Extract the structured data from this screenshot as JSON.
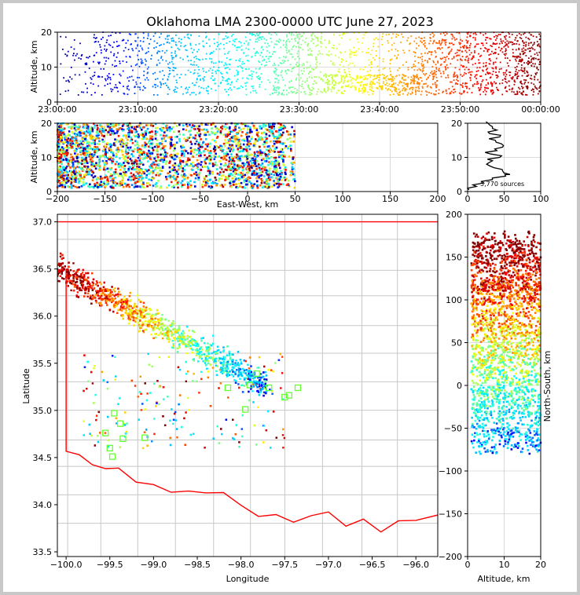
{
  "figure_title": "Oklahoma LMA 2300-0000 UTC June 27, 2023",
  "chart_data": [
    {
      "type": "scatter",
      "name": "time-height",
      "ylabel": "Altitude, km",
      "xlim_labels": [
        "23:00:00",
        "00:00:00"
      ],
      "x_ticks": [
        "23:00:00",
        "23:10:00",
        "23:20:00",
        "23:30:00",
        "23:40:00",
        "23:50:00",
        "00:00:00"
      ],
      "ylim": [
        0,
        20
      ],
      "y_ticks": [
        0,
        10,
        20
      ],
      "color_by": "time",
      "colormap": [
        "#00008f",
        "#0000ff",
        "#00bfff",
        "#00ffff",
        "#80ff80",
        "#ffff00",
        "#ff8000",
        "#ff0000",
        "#800000"
      ],
      "grid": true
    },
    {
      "type": "scatter",
      "name": "east-west-altitude",
      "xlabel": "East-West, km",
      "ylabel": "Altitude, km",
      "xlim": [
        -200,
        200
      ],
      "x_ticks": [
        -200,
        -150,
        -100,
        -50,
        0,
        50,
        100,
        150,
        200
      ],
      "ylim": [
        0,
        20
      ],
      "y_ticks": [
        0,
        10,
        20
      ],
      "grid": true
    },
    {
      "type": "line",
      "name": "altitude-histogram",
      "xlim": [
        0,
        100
      ],
      "x_ticks": [
        0,
        50,
        100
      ],
      "ylim": [
        0,
        20
      ],
      "y_ticks": [
        0,
        10,
        20
      ],
      "annotation": "5,770 sources",
      "profile": [
        {
          "alt": 0.5,
          "count": 2
        },
        {
          "alt": 1.5,
          "count": 12
        },
        {
          "alt": 2.5,
          "count": 22
        },
        {
          "alt": 3.5,
          "count": 34
        },
        {
          "alt": 4.5,
          "count": 52
        },
        {
          "alt": 5.0,
          "count": 58
        },
        {
          "alt": 6.0,
          "count": 48
        },
        {
          "alt": 7.0,
          "count": 36
        },
        {
          "alt": 8.0,
          "count": 26
        },
        {
          "alt": 9.0,
          "count": 34
        },
        {
          "alt": 10.0,
          "count": 44
        },
        {
          "alt": 11.0,
          "count": 32
        },
        {
          "alt": 12.0,
          "count": 40
        },
        {
          "alt": 13.0,
          "count": 48
        },
        {
          "alt": 14.0,
          "count": 46
        },
        {
          "alt": 15.0,
          "count": 38
        },
        {
          "alt": 16.0,
          "count": 44
        },
        {
          "alt": 17.0,
          "count": 30
        },
        {
          "alt": 18.0,
          "count": 40
        },
        {
          "alt": 19.0,
          "count": 34
        },
        {
          "alt": 20.0,
          "count": 28
        }
      ]
    },
    {
      "type": "scatter",
      "name": "plan-view-map",
      "xlabel": "Longitude",
      "ylabel": "Latitude",
      "xlim": [
        -100.1,
        -95.75
      ],
      "x_ticks": [
        -100.0,
        -99.5,
        -99.0,
        -98.5,
        -98.0,
        -97.5,
        -97.0,
        -96.5,
        -96.0
      ],
      "x_tick_labels": [
        "−100.0",
        "−99.5",
        "−99.0",
        "−98.5",
        "−98.0",
        "−97.5",
        "−97.0",
        "−96.5",
        "−96.0"
      ],
      "ylim": [
        33.45,
        37.08
      ],
      "y_ticks": [
        33.5,
        34.0,
        34.5,
        35.0,
        35.5,
        36.0,
        36.5,
        37.0
      ],
      "y_tick_labels": [
        "33.5",
        "34.0",
        "34.5",
        "35.0",
        "35.5",
        "36.0",
        "36.5",
        "37.0"
      ],
      "stations": [
        {
          "lon": -99.55,
          "lat": 34.76
        },
        {
          "lon": -99.5,
          "lat": 34.6
        },
        {
          "lon": -99.47,
          "lat": 34.51
        },
        {
          "lon": -99.45,
          "lat": 34.97
        },
        {
          "lon": -99.38,
          "lat": 34.86
        },
        {
          "lon": -99.35,
          "lat": 34.7
        },
        {
          "lon": -99.1,
          "lat": 34.71
        },
        {
          "lon": -98.15,
          "lat": 35.24
        },
        {
          "lon": -97.95,
          "lat": 35.01
        },
        {
          "lon": -97.9,
          "lat": 35.27
        },
        {
          "lon": -97.82,
          "lat": 35.39
        },
        {
          "lon": -97.68,
          "lat": 35.24
        },
        {
          "lon": -97.5,
          "lat": 35.14
        },
        {
          "lon": -97.45,
          "lat": 35.16
        },
        {
          "lon": -97.35,
          "lat": 35.24
        }
      ],
      "station_color": "#66ff33",
      "boundary_color": "#ff0000",
      "county_color": "#c8c8c8"
    },
    {
      "type": "scatter",
      "name": "altitude-north-south",
      "xlabel": "Altitude, km",
      "ylabel": "North-South, km",
      "xlim": [
        0,
        20
      ],
      "x_ticks": [
        0,
        10,
        20
      ],
      "ylim": [
        -200,
        200
      ],
      "y_ticks": [
        -200,
        -150,
        -100,
        -50,
        0,
        50,
        100,
        150,
        200
      ],
      "grid": true
    }
  ]
}
